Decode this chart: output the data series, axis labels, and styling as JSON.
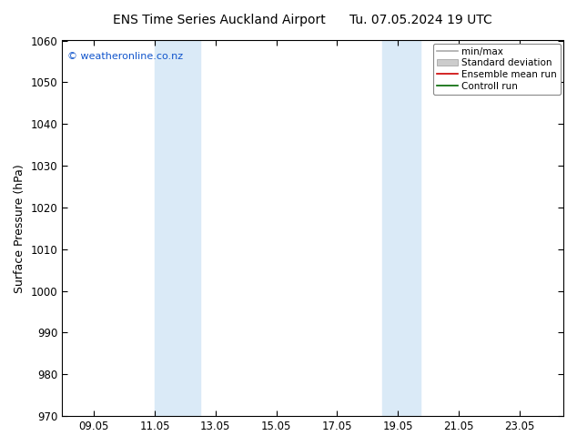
{
  "title_left": "ENS Time Series Auckland Airport",
  "title_right": "Tu. 07.05.2024 19 UTC",
  "ylabel": "Surface Pressure (hPa)",
  "ylim": [
    970,
    1060
  ],
  "yticks": [
    970,
    980,
    990,
    1000,
    1010,
    1020,
    1030,
    1040,
    1050,
    1060
  ],
  "xlim_start": 8.0,
  "xlim_end": 24.5,
  "xtick_positions": [
    9.05,
    11.05,
    13.05,
    15.05,
    17.05,
    19.05,
    21.05,
    23.05
  ],
  "xtick_labels": [
    "09.05",
    "11.05",
    "13.05",
    "15.05",
    "17.05",
    "19.05",
    "21.05",
    "23.05"
  ],
  "shaded_bands": [
    {
      "xmin": 11.05,
      "xmax": 12.55
    },
    {
      "xmin": 18.55,
      "xmax": 19.8
    }
  ],
  "shade_color": "#daeaf7",
  "watermark": "© weatheronline.co.nz",
  "watermark_color": "#1155cc",
  "legend_entries": [
    {
      "label": "min/max",
      "color": "#aaaaaa",
      "lw": 1.2,
      "style": "-",
      "type": "line"
    },
    {
      "label": "Standard deviation",
      "color": "#cccccc",
      "lw": 8,
      "style": "-",
      "type": "patch"
    },
    {
      "label": "Ensemble mean run",
      "color": "#cc0000",
      "lw": 1.2,
      "style": "-",
      "type": "line"
    },
    {
      "label": "Controll run",
      "color": "#006600",
      "lw": 1.2,
      "style": "-",
      "type": "line"
    }
  ],
  "background_color": "#ffffff",
  "title_fontsize": 10,
  "axis_label_fontsize": 9,
  "tick_fontsize": 8.5
}
